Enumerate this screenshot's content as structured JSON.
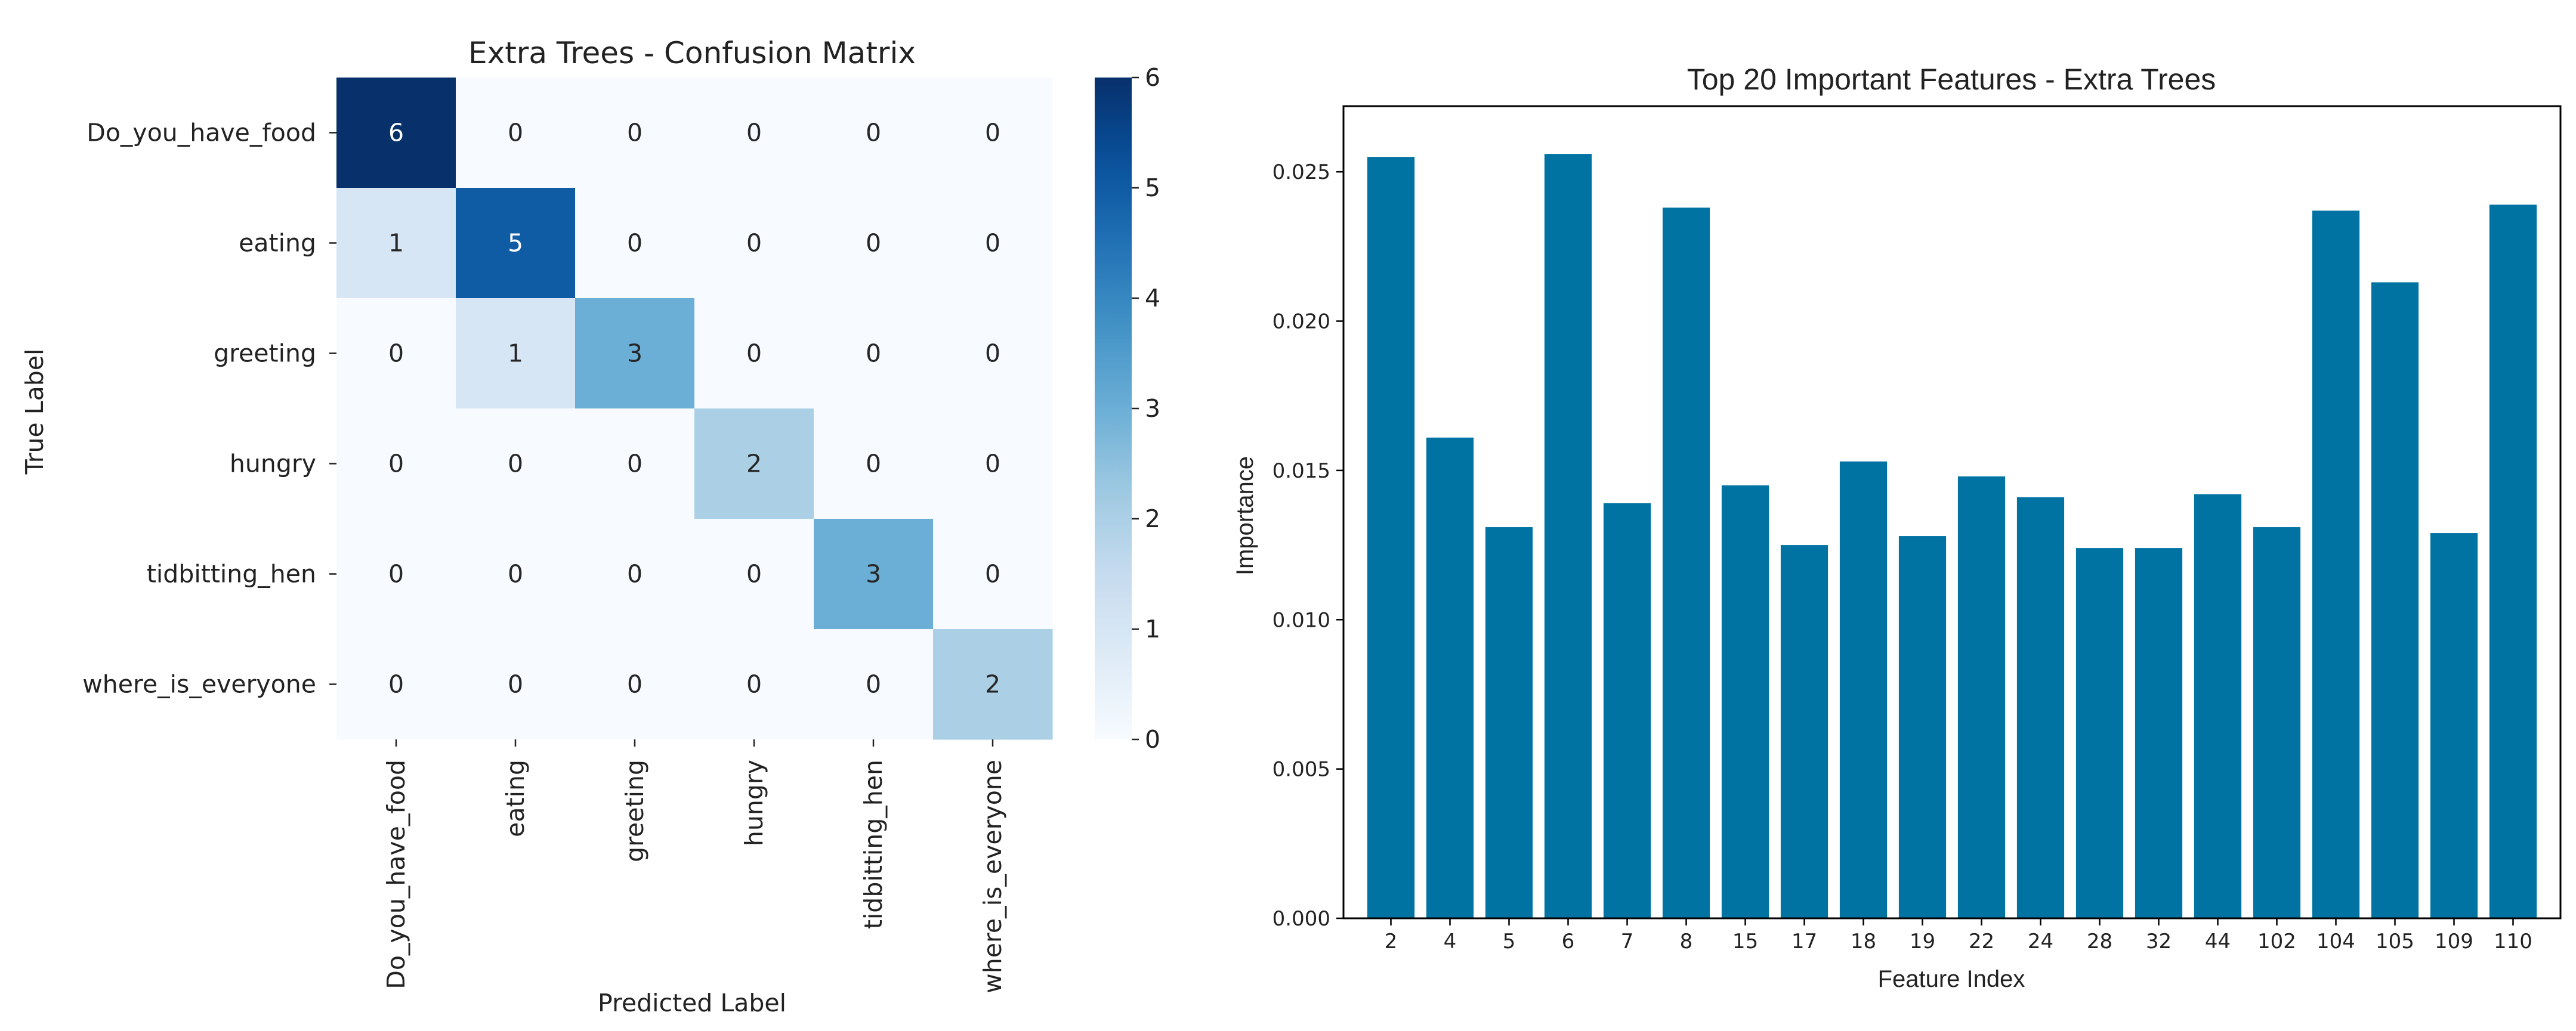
{
  "chart_data": [
    {
      "type": "heatmap",
      "title": "Extra Trees - Confusion Matrix",
      "xlabel": "Predicted Label",
      "ylabel": "True Label",
      "x_categories": [
        "Do_you_have_food",
        "eating",
        "greeting",
        "hungry",
        "tidbitting_hen",
        "where_is_everyone"
      ],
      "y_categories": [
        "Do_you_have_food",
        "eating",
        "greeting",
        "hungry",
        "tidbitting_hen",
        "where_is_everyone"
      ],
      "values": [
        [
          6,
          0,
          0,
          0,
          0,
          0
        ],
        [
          1,
          5,
          0,
          0,
          0,
          0
        ],
        [
          0,
          1,
          3,
          0,
          0,
          0
        ],
        [
          0,
          0,
          0,
          2,
          0,
          0
        ],
        [
          0,
          0,
          0,
          0,
          3,
          0
        ],
        [
          0,
          0,
          0,
          0,
          0,
          2
        ]
      ],
      "colorbar": {
        "min": 0,
        "max": 6,
        "ticks": [
          "0",
          "1",
          "2",
          "3",
          "4",
          "5",
          "6"
        ],
        "colormap": "Blues"
      }
    },
    {
      "type": "bar",
      "title": "Top 20 Important Features - Extra Trees",
      "xlabel": "Feature Index",
      "ylabel": "Importance",
      "categories": [
        "2",
        "4",
        "5",
        "6",
        "7",
        "8",
        "15",
        "17",
        "18",
        "19",
        "22",
        "24",
        "28",
        "32",
        "44",
        "102",
        "104",
        "105",
        "109",
        "110"
      ],
      "values": [
        0.0255,
        0.0161,
        0.0131,
        0.0256,
        0.0139,
        0.0238,
        0.0145,
        0.0125,
        0.0153,
        0.0128,
        0.0148,
        0.0141,
        0.0124,
        0.0124,
        0.0142,
        0.0131,
        0.0237,
        0.0213,
        0.0129,
        0.0239
      ],
      "ylim": [
        0,
        0.0272
      ],
      "yticks": [
        "0.000",
        "0.005",
        "0.010",
        "0.015",
        "0.020",
        "0.025"
      ],
      "color": "#0173a3"
    }
  ]
}
